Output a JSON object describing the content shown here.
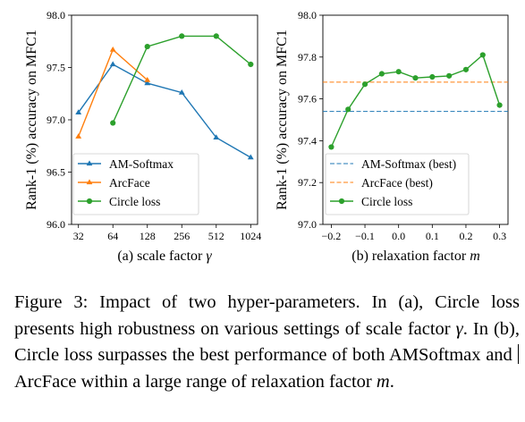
{
  "colors": {
    "am_softmax": "#1f77b4",
    "arcface": "#ff7f0e",
    "circle": "#2ca02c"
  },
  "chart_data": [
    {
      "type": "line",
      "ylabel": "Rank-1 (%) accuracy on MFC1",
      "xlabel_prefix": "(a) scale factor",
      "xlabel_symbol": "γ",
      "x_scale": "log2",
      "categories": [
        "32",
        "64",
        "128",
        "256",
        "512",
        "1024"
      ],
      "x": [
        32,
        64,
        128,
        256,
        512,
        1024
      ],
      "ylim": [
        96.0,
        98.0
      ],
      "yticks": [
        "96.0",
        "96.5",
        "97.0",
        "97.5",
        "98.0"
      ],
      "legend_position": "lower-left",
      "series": [
        {
          "name": "AM-Softmax",
          "marker": "triangle",
          "x": [
            32,
            64,
            128,
            256,
            512,
            1024
          ],
          "values": [
            97.07,
            97.53,
            97.35,
            97.26,
            96.83,
            96.64
          ]
        },
        {
          "name": "ArcFace",
          "marker": "triangle",
          "x": [
            32,
            64,
            128
          ],
          "values": [
            96.84,
            97.67,
            97.38
          ]
        },
        {
          "name": "Circle loss",
          "marker": "circle",
          "x": [
            64,
            128,
            256,
            512,
            1024
          ],
          "values": [
            96.97,
            97.7,
            97.8,
            97.8,
            97.53
          ]
        }
      ]
    },
    {
      "type": "line",
      "ylabel": "Rank-1 (%) accuracy on MFC1",
      "xlabel_prefix": "(b) relaxation factor",
      "xlabel_symbol": "m",
      "xlim": [
        -0.225,
        0.325
      ],
      "xticks": [
        "−0.2",
        "−0.1",
        "0.0",
        "0.1",
        "0.2",
        "0.3"
      ],
      "ylim": [
        97.0,
        98.0
      ],
      "yticks": [
        "97.0",
        "97.2",
        "97.4",
        "97.6",
        "97.8",
        "98.0"
      ],
      "legend_position": "lower-left",
      "series": [
        {
          "name": "AM-Softmax (best)",
          "style": "dashed",
          "constant": 97.54
        },
        {
          "name": "ArcFace (best)",
          "style": "dashed",
          "constant": 97.68
        },
        {
          "name": "Circle loss",
          "marker": "circle",
          "x": [
            -0.2,
            -0.15,
            -0.1,
            -0.05,
            0.0,
            0.05,
            0.1,
            0.15,
            0.2,
            0.25,
            0.3
          ],
          "values": [
            97.37,
            97.55,
            97.67,
            97.72,
            97.73,
            97.7,
            97.705,
            97.71,
            97.74,
            97.81,
            97.57
          ]
        }
      ]
    }
  ],
  "caption": {
    "part1": "Figure 3: Impact of two hyper-parameters. In (a), Circle loss presents high robustness on various settings of scale factor ",
    "gamma": "γ",
    "part2": ". In (b), Circle loss surpasses the best performance of both AMSoftmax and ",
    "part3": "ArcFace within a large range of relaxation factor ",
    "m": "m",
    "part4": "."
  }
}
